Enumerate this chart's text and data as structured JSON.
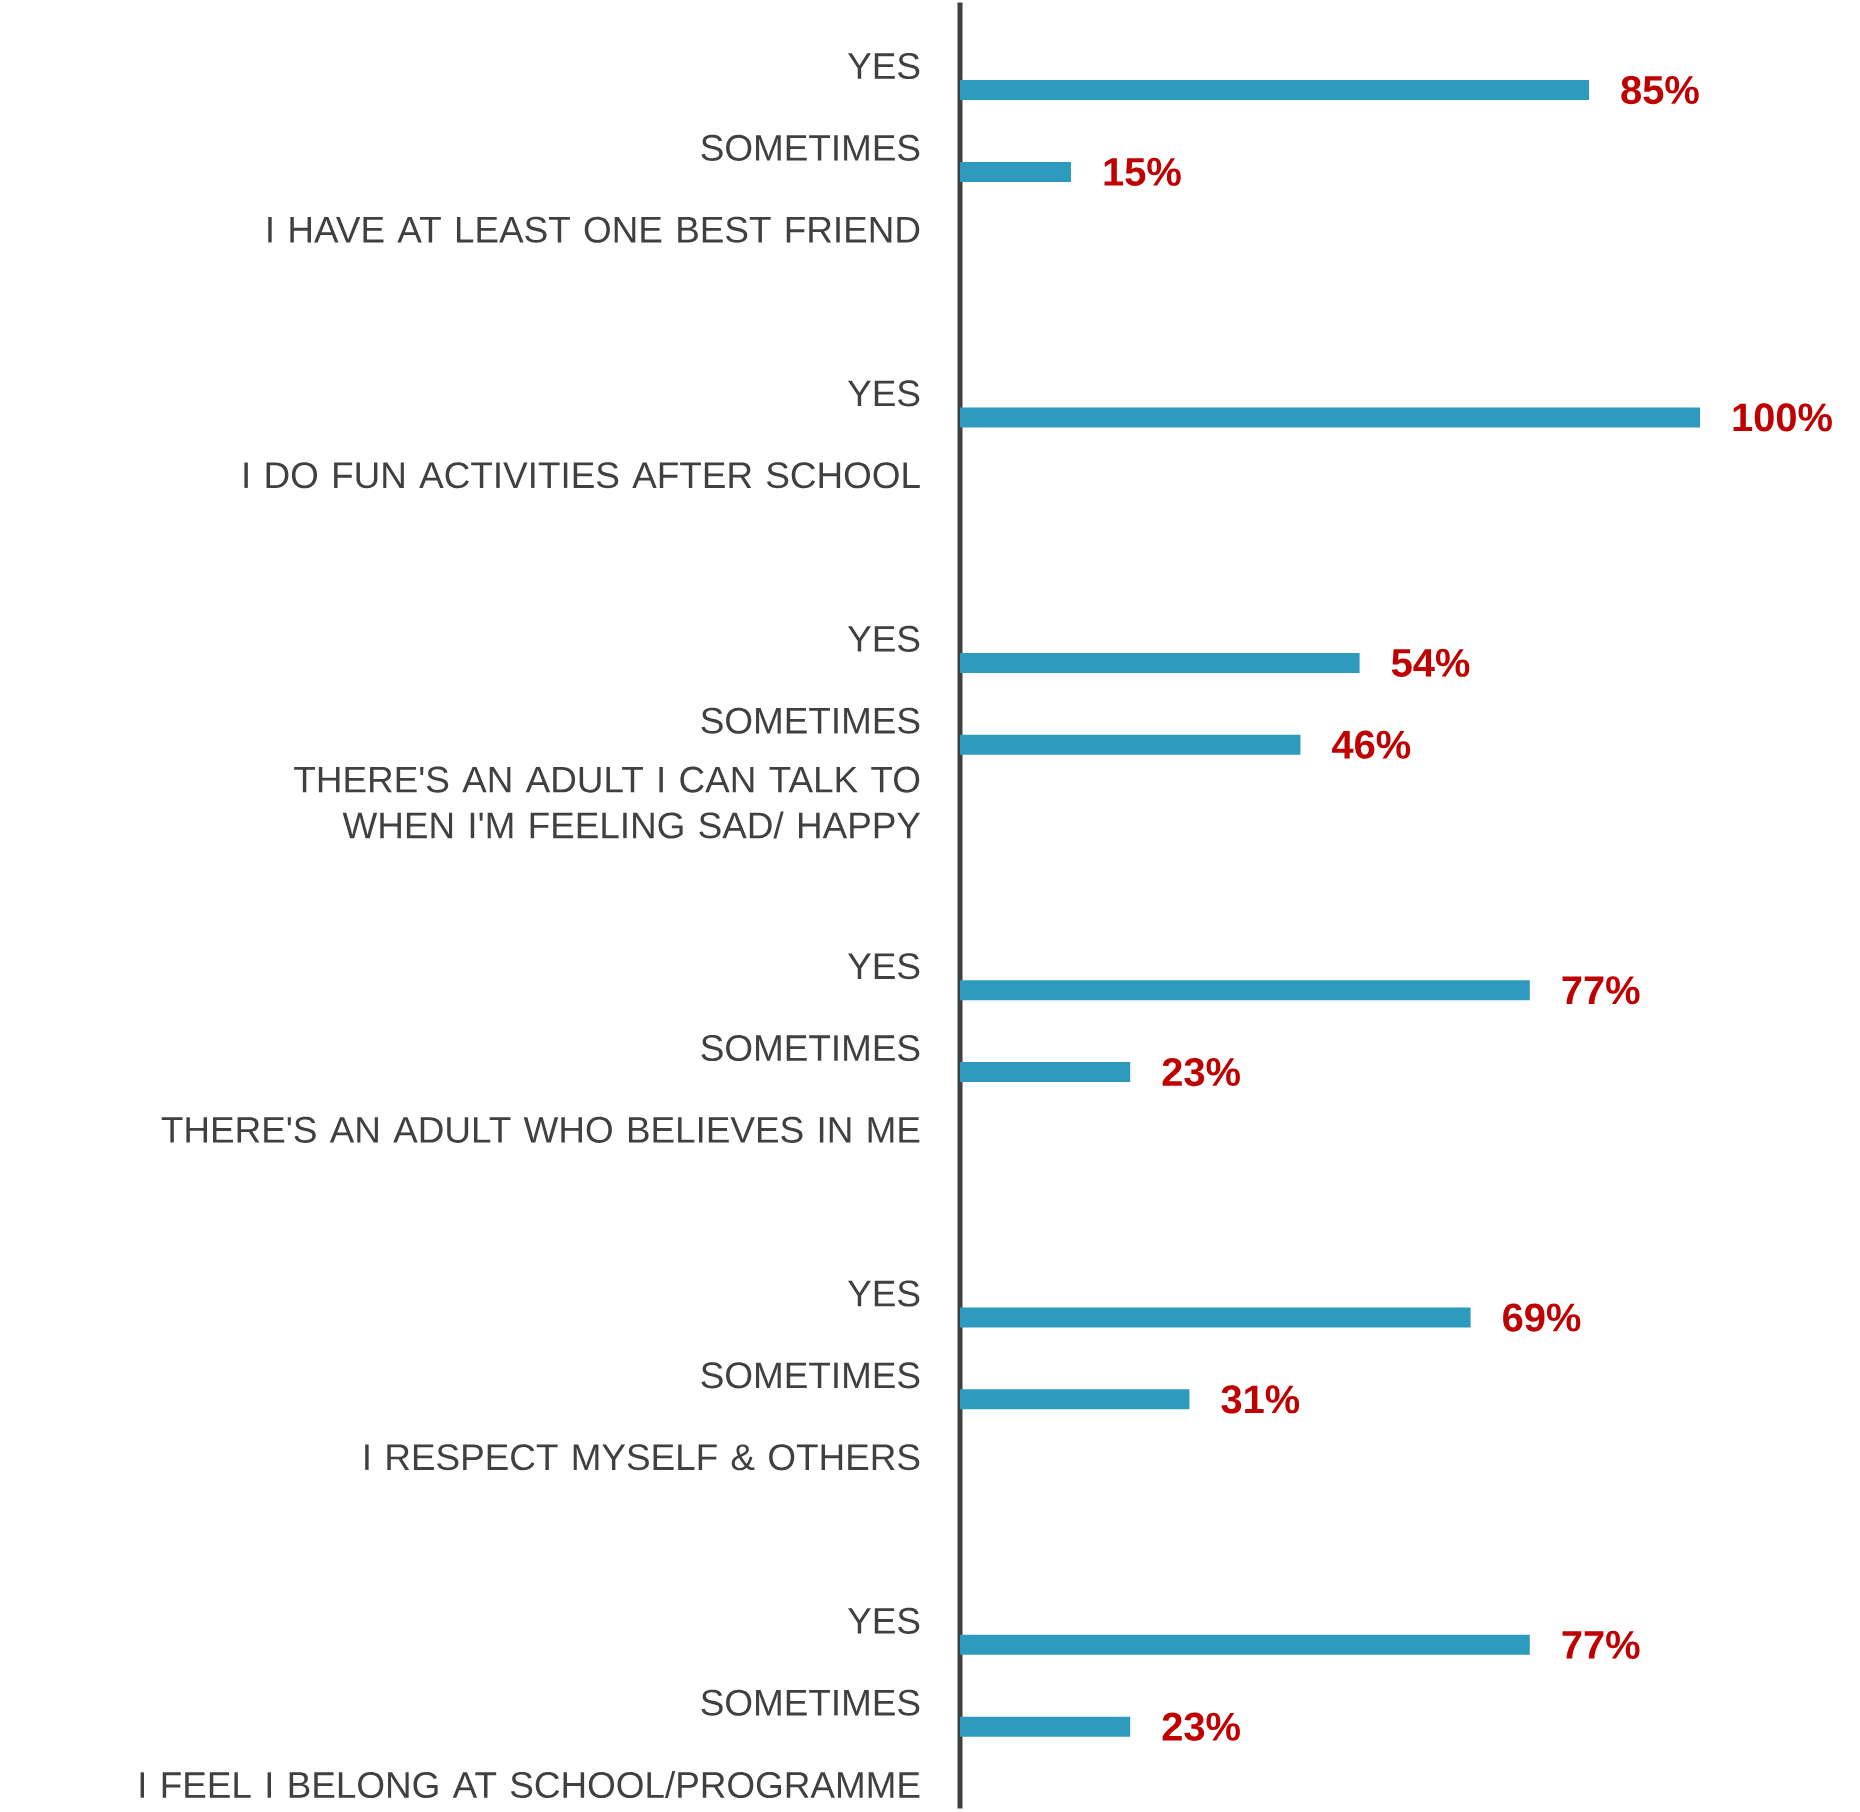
{
  "chart_data": {
    "type": "bar",
    "orientation": "horizontal",
    "tick_labels": "y",
    "color": "#2e9abd",
    "categories": [
      "YES",
      "SOMETIMES",
      "I HAVE AT LEAST ONE BEST FRIEND",
      null,
      "YES",
      "I DO FUN ACTIVITIES AFTER SCHOOL",
      null,
      "YES",
      "SOMETIMES",
      "THERE'S AN ADULT I CAN TALK TO WHEN I'M FEELING SAD/ HAPPY",
      null,
      "YES",
      "SOMETIMES",
      "THERE'S AN ADULT WHO BELIEVES IN ME",
      null,
      "YES",
      "SOMETIMES",
      "I RESPECT MYSELF & OTHERS",
      null,
      "YES",
      "SOMETIMES",
      "I FEEL I BELONG AT SCHOOL/PROGRAMME"
    ],
    "values": [
      85,
      15,
      null,
      null,
      100,
      null,
      null,
      54,
      46,
      null,
      null,
      77,
      23,
      null,
      null,
      69,
      31,
      null,
      null,
      77,
      23,
      null
    ],
    "value_labels": [
      "85%",
      "15%",
      null,
      null,
      "100%",
      null,
      null,
      "54%",
      "46%",
      null,
      null,
      "77%",
      "23%",
      null,
      null,
      "69%",
      "31%",
      null,
      null,
      "77%",
      "23%",
      null
    ]
  }
}
